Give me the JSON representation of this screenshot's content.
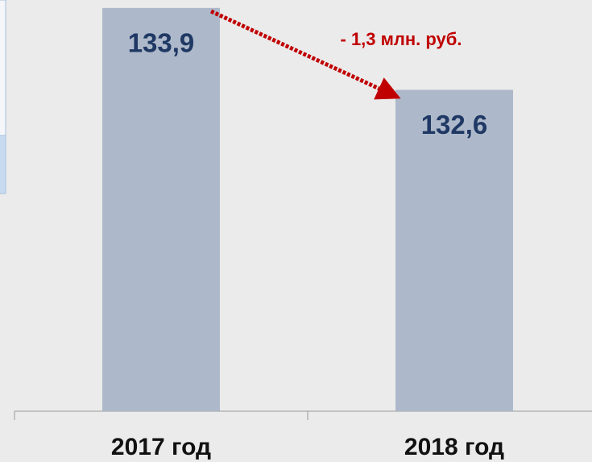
{
  "chart_data": {
    "type": "bar",
    "categories": [
      "2017 год",
      "2018 год"
    ],
    "values": [
      133.9,
      132.6
    ],
    "value_labels": [
      "133,9",
      "132,6"
    ],
    "color": "#adb9ca",
    "ylim": [
      127.5,
      134
    ],
    "annotation": "- 1,3 млн. руб."
  }
}
